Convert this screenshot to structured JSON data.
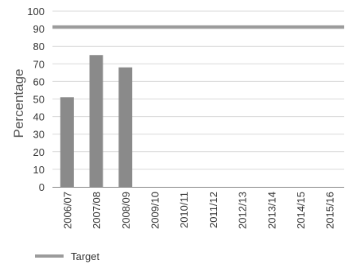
{
  "chart_data": {
    "type": "bar",
    "ylabel": "Percentage",
    "categories": [
      "2006/07",
      "2007/08",
      "2008/09",
      "2009/10",
      "2010/11",
      "2011/12",
      "2012/13",
      "2013/14",
      "2014/15",
      "2015/16"
    ],
    "series": [
      {
        "values": [
          51,
          75,
          68,
          null,
          null,
          null,
          null,
          null,
          null,
          null
        ]
      }
    ],
    "target": {
      "name": "Target",
      "value": 91
    },
    "ylim": [
      0,
      100
    ],
    "yticks": [
      0,
      10,
      20,
      30,
      40,
      50,
      60,
      70,
      80,
      90,
      100
    ],
    "grid": true,
    "legend": "bottom-left",
    "colors": {
      "bar": "#8a8a8a",
      "target": "#9b9b9b",
      "grid": "#d9d9d9",
      "axis": "#888888"
    }
  }
}
